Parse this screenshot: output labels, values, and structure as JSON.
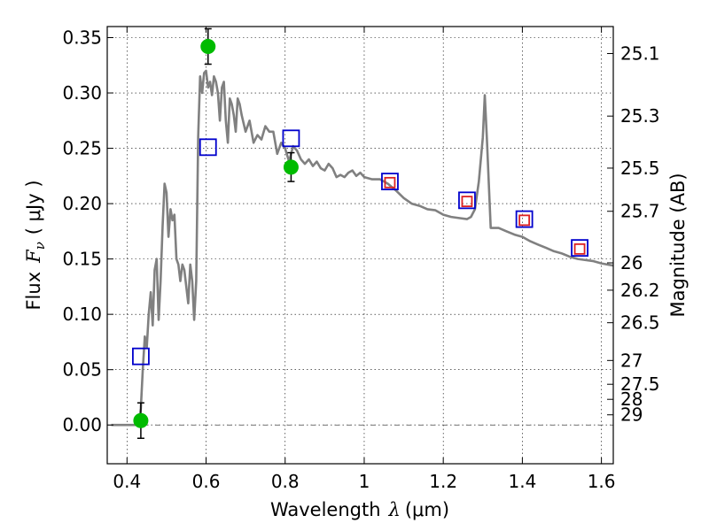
{
  "chart_data": {
    "type": "line",
    "xlabel": "Wavelength",
    "xlabel_math": "λ",
    "xlabel_unit": "(μm)",
    "ylabel": "Flux",
    "ylabel_math": "F",
    "ylabel_sub": "ν",
    "ylabel_unit": "( μJy )",
    "ylabel_right": "Magnitude (AB)",
    "xlim": [
      0.35,
      1.63
    ],
    "ylim": [
      -0.035,
      0.36
    ],
    "grid": true,
    "x_ticks": [
      0.4,
      0.6,
      0.8,
      1.0,
      1.2,
      1.4,
      1.6
    ],
    "x_tick_labels": [
      "0.4",
      "0.6",
      "0.8",
      "1",
      "1.2",
      "1.4",
      "1.6"
    ],
    "y_ticks": [
      0.0,
      0.05,
      0.1,
      0.15,
      0.2,
      0.25,
      0.3,
      0.35
    ],
    "y_tick_labels": [
      "0.00",
      "0.05",
      "0.10",
      "0.15",
      "0.20",
      "0.25",
      "0.30",
      "0.35"
    ],
    "right_axis_ticks": [
      {
        "label": "25.1",
        "flux": 0.3356
      },
      {
        "label": "25.3",
        "flux": 0.2791
      },
      {
        "label": "25.5",
        "flux": 0.2321
      },
      {
        "label": "25.7",
        "flux": 0.1931
      },
      {
        "label": "26",
        "flux": 0.1465
      },
      {
        "label": "26.2",
        "flux": 0.1218
      },
      {
        "label": "26.5",
        "flux": 0.0924
      },
      {
        "label": "27",
        "flux": 0.0583
      },
      {
        "label": "27.5",
        "flux": 0.0368
      },
      {
        "label": "28",
        "flux": 0.0232
      },
      {
        "label": "29",
        "flux": 0.0092
      }
    ],
    "series": [
      {
        "kind": "sed_model",
        "color": "#808080",
        "x": [
          0.36,
          0.42,
          0.43,
          0.435,
          0.44,
          0.445,
          0.45,
          0.455,
          0.46,
          0.465,
          0.47,
          0.475,
          0.48,
          0.485,
          0.49,
          0.495,
          0.5,
          0.505,
          0.51,
          0.515,
          0.52,
          0.525,
          0.53,
          0.535,
          0.54,
          0.545,
          0.55,
          0.555,
          0.56,
          0.565,
          0.57,
          0.575,
          0.58,
          0.585,
          0.59,
          0.595,
          0.6,
          0.605,
          0.61,
          0.615,
          0.62,
          0.625,
          0.63,
          0.635,
          0.64,
          0.645,
          0.65,
          0.655,
          0.66,
          0.665,
          0.67,
          0.675,
          0.68,
          0.685,
          0.69,
          0.7,
          0.71,
          0.72,
          0.73,
          0.74,
          0.75,
          0.76,
          0.77,
          0.78,
          0.79,
          0.8,
          0.81,
          0.82,
          0.83,
          0.84,
          0.85,
          0.86,
          0.87,
          0.88,
          0.89,
          0.9,
          0.91,
          0.92,
          0.93,
          0.94,
          0.95,
          0.96,
          0.97,
          0.98,
          0.99,
          1.0,
          1.02,
          1.04,
          1.06,
          1.08,
          1.1,
          1.12,
          1.14,
          1.16,
          1.18,
          1.2,
          1.22,
          1.24,
          1.26,
          1.27,
          1.28,
          1.29,
          1.3,
          1.305,
          1.31,
          1.32,
          1.34,
          1.36,
          1.38,
          1.4,
          1.42,
          1.44,
          1.46,
          1.48,
          1.5,
          1.52,
          1.54,
          1.56,
          1.58,
          1.6,
          1.63
        ],
        "y": [
          0.0,
          0.0,
          0.002,
          0.015,
          0.05,
          0.08,
          0.07,
          0.1,
          0.12,
          0.09,
          0.14,
          0.15,
          0.095,
          0.13,
          0.18,
          0.218,
          0.21,
          0.17,
          0.195,
          0.185,
          0.19,
          0.15,
          0.145,
          0.13,
          0.145,
          0.14,
          0.125,
          0.11,
          0.145,
          0.13,
          0.095,
          0.13,
          0.26,
          0.315,
          0.3,
          0.318,
          0.32,
          0.305,
          0.31,
          0.298,
          0.315,
          0.31,
          0.3,
          0.275,
          0.305,
          0.31,
          0.275,
          0.255,
          0.295,
          0.29,
          0.28,
          0.265,
          0.295,
          0.29,
          0.28,
          0.265,
          0.275,
          0.255,
          0.262,
          0.258,
          0.27,
          0.265,
          0.265,
          0.245,
          0.255,
          0.25,
          0.238,
          0.252,
          0.248,
          0.24,
          0.236,
          0.24,
          0.234,
          0.238,
          0.232,
          0.23,
          0.236,
          0.232,
          0.224,
          0.226,
          0.224,
          0.228,
          0.23,
          0.225,
          0.228,
          0.224,
          0.222,
          0.222,
          0.218,
          0.212,
          0.205,
          0.2,
          0.198,
          0.195,
          0.194,
          0.19,
          0.188,
          0.187,
          0.186,
          0.188,
          0.195,
          0.22,
          0.26,
          0.298,
          0.26,
          0.178,
          0.178,
          0.175,
          0.172,
          0.17,
          0.166,
          0.163,
          0.16,
          0.157,
          0.155,
          0.152,
          0.15,
          0.149,
          0.148,
          0.146,
          0.144
        ]
      },
      {
        "kind": "model_photometry",
        "marker": "open-square",
        "color": "#0000cc",
        "points": [
          {
            "x": 0.435,
            "y": 0.062
          },
          {
            "x": 0.605,
            "y": 0.251
          },
          {
            "x": 0.815,
            "y": 0.259
          },
          {
            "x": 1.065,
            "y": 0.22
          },
          {
            "x": 1.26,
            "y": 0.203
          },
          {
            "x": 1.405,
            "y": 0.186
          },
          {
            "x": 1.545,
            "y": 0.16
          }
        ]
      },
      {
        "kind": "observed_upper",
        "marker": "open-square",
        "color": "#dd2222",
        "points": [
          {
            "x": 1.065,
            "y": 0.219
          },
          {
            "x": 1.26,
            "y": 0.202
          },
          {
            "x": 1.405,
            "y": 0.185
          },
          {
            "x": 1.545,
            "y": 0.159
          }
        ]
      },
      {
        "kind": "observed_detections",
        "marker": "filled-circle",
        "color": "#00bb00",
        "points": [
          {
            "x": 0.435,
            "y": 0.004,
            "err": 0.016
          },
          {
            "x": 0.605,
            "y": 0.342,
            "err": 0.016
          },
          {
            "x": 0.815,
            "y": 0.233,
            "err": 0.013
          }
        ]
      }
    ]
  }
}
